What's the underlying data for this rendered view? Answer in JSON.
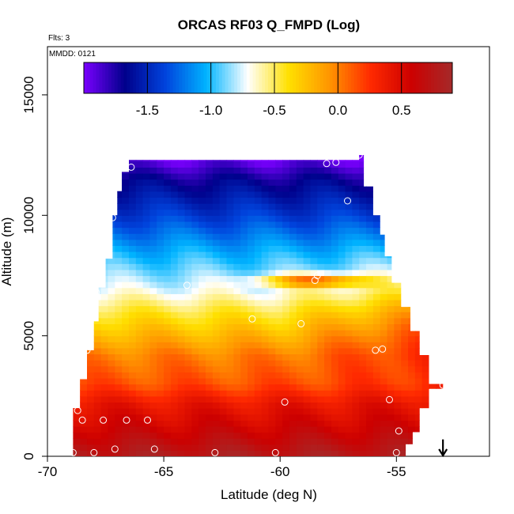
{
  "chart_data": {
    "type": "heatmap",
    "title": "ORCAS RF03 Q_FMPD (Log)",
    "annotations": [
      "Flts: 3",
      "MMDD: 0121"
    ],
    "xlabel": "Latitude (deg N)",
    "ylabel": "Altitude (m)",
    "xlim": [
      -70,
      -51
    ],
    "ylim": [
      0,
      17000
    ],
    "x_ticks": [
      -70,
      -65,
      -60,
      -55
    ],
    "y_ticks": [
      0,
      5000,
      10000,
      15000
    ],
    "colorbar": {
      "range": [
        -2.0,
        0.9
      ],
      "ticks": [
        -1.5,
        -1.0,
        -0.5,
        0.0,
        0.5
      ],
      "tick_labels": [
        "-1.5",
        "-1.0",
        "-0.5",
        "0.0",
        "0.5"
      ],
      "colors": [
        "#7b00ff",
        "#00008b",
        "#0044dd",
        "#00b4ff",
        "#ffffff",
        "#ffe000",
        "#ff9500",
        "#ff2a00",
        "#cc0000",
        "#a52a2a"
      ]
    },
    "field_outline": [
      [
        -68.9,
        0
      ],
      [
        -68.9,
        2000
      ],
      [
        -68.6,
        2000
      ],
      [
        -68.6,
        3200
      ],
      [
        -68.3,
        3200
      ],
      [
        -68.3,
        4400
      ],
      [
        -68.0,
        4400
      ],
      [
        -68.0,
        5600
      ],
      [
        -67.8,
        5600
      ],
      [
        -67.8,
        7000
      ],
      [
        -67.5,
        7000
      ],
      [
        -67.5,
        8200
      ],
      [
        -67.2,
        8200
      ],
      [
        -67.2,
        10000
      ],
      [
        -67.0,
        10000
      ],
      [
        -67.0,
        11000
      ],
      [
        -66.8,
        11000
      ],
      [
        -66.8,
        11800
      ],
      [
        -66.5,
        11800
      ],
      [
        -66.5,
        12300
      ],
      [
        -56.6,
        12300
      ],
      [
        -56.6,
        12500
      ],
      [
        -56.4,
        12500
      ],
      [
        -56.4,
        11200
      ],
      [
        -56.0,
        11200
      ],
      [
        -56.0,
        10000
      ],
      [
        -55.7,
        10000
      ],
      [
        -55.7,
        9200
      ],
      [
        -55.5,
        9200
      ],
      [
        -55.5,
        8300
      ],
      [
        -55.2,
        8300
      ],
      [
        -55.2,
        7200
      ],
      [
        -54.8,
        7200
      ],
      [
        -54.8,
        6200
      ],
      [
        -54.4,
        6200
      ],
      [
        -54.4,
        5200
      ],
      [
        -54.0,
        5200
      ],
      [
        -54.0,
        4200
      ],
      [
        -53.6,
        4200
      ],
      [
        -53.6,
        3000
      ],
      [
        -53.0,
        3000
      ],
      [
        -53.0,
        2800
      ],
      [
        -53.6,
        2800
      ],
      [
        -53.6,
        2000
      ],
      [
        -54.0,
        2000
      ],
      [
        -54.0,
        1000
      ],
      [
        -54.3,
        1000
      ],
      [
        -54.3,
        500
      ],
      [
        -54.6,
        500
      ],
      [
        -54.6,
        0
      ]
    ],
    "value_model": {
      "description": "",
      "layers": [
        {
          "alt": 0,
          "value": 0.8
        },
        {
          "alt": 1000,
          "value": 0.6
        },
        {
          "alt": 2200,
          "value": 0.4
        },
        {
          "alt": 3000,
          "value": 0.15
        },
        {
          "alt": 4200,
          "value": 0.0
        },
        {
          "alt": 5000,
          "value": -0.2
        },
        {
          "alt": 6000,
          "value": -0.45
        },
        {
          "alt": 7000,
          "value": -0.75
        },
        {
          "alt": 8500,
          "value": -1.05
        },
        {
          "alt": 10000,
          "value": -1.4
        },
        {
          "alt": 11500,
          "value": -1.7
        },
        {
          "alt": 12300,
          "value": -1.95
        }
      ]
    },
    "observations": [
      [
        -68.9,
        150
      ],
      [
        -68.0,
        150
      ],
      [
        -67.1,
        300
      ],
      [
        -65.4,
        300
      ],
      [
        -62.8,
        150
      ],
      [
        -60.2,
        150
      ],
      [
        -55.0,
        150
      ],
      [
        -54.9,
        1050
      ],
      [
        -55.3,
        2350
      ],
      [
        -59.8,
        2250
      ],
      [
        -68.5,
        1500
      ],
      [
        -67.6,
        1500
      ],
      [
        -66.6,
        1500
      ],
      [
        -65.7,
        1500
      ],
      [
        -68.7,
        1900
      ],
      [
        -68.3,
        4400
      ],
      [
        -55.9,
        4400
      ],
      [
        -55.6,
        4450
      ],
      [
        -53.0,
        2950
      ],
      [
        -59.1,
        5500
      ],
      [
        -61.2,
        5700
      ],
      [
        -67.9,
        6800
      ],
      [
        -64.0,
        7100
      ],
      [
        -58.5,
        7300
      ],
      [
        -58.4,
        7500
      ],
      [
        -67.2,
        9900
      ],
      [
        -57.1,
        10600
      ],
      [
        -66.4,
        12000
      ],
      [
        -58.0,
        12150
      ],
      [
        -57.6,
        12200
      ],
      [
        -56.6,
        12500
      ]
    ],
    "arrow_marker": {
      "x": -53.0,
      "y_top": 700,
      "y_bottom": 0
    }
  }
}
